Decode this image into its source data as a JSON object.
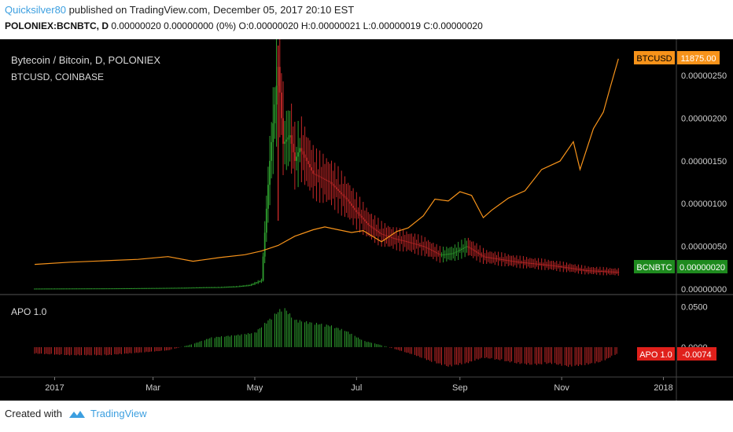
{
  "header": {
    "author": "Quicksilver80",
    "published_text": "published on TradingView.com, December 05, 2017 20:10 EST",
    "symbol": "POLONIEX:BCNBTC, D",
    "ohlc_text": "0.00000020 0.00000000 (0%) O:0.00000020 H:0.00000021 L:0.00000019 C:0.00000020"
  },
  "main_panel": {
    "title": "Bytecoin / Bitcoin, D, POLONIEX",
    "overlay_label": "BTCUSD, COINBASE"
  },
  "indicator_panel": {
    "title": "APO 1.0"
  },
  "footer": {
    "created_with": "Created with",
    "brand": "TradingView"
  },
  "colors": {
    "background": "#000000",
    "btcusd_line": "#f7931a",
    "up": "#2e9e2e",
    "down": "#c62828",
    "badge_green": "#1e8a1e",
    "badge_red": "#e0201b",
    "badge_orange": "#f7931a",
    "brand_blue": "#3c9fe0"
  },
  "chart_data": [
    {
      "type": "candlestick",
      "title": "Bytecoin / Bitcoin, D, POLONIEX",
      "series_name": "BCNBTC",
      "x_ticks": [
        "2017",
        "Mar",
        "May",
        "Jul",
        "Sep",
        "Nov",
        "2018"
      ],
      "y_ticks": [
        "0.00000000",
        "0.00000050",
        "0.00000100",
        "0.00000150",
        "0.00000200",
        "0.00000250"
      ],
      "ylim": [
        0,
        2.85e-06
      ],
      "last_value_label": "BCNBTC",
      "last_value": "0.00000020",
      "x": [
        "2016-12-20",
        "2017-01-05",
        "2017-01-20",
        "2017-02-05",
        "2017-02-20",
        "2017-03-05",
        "2017-03-20",
        "2017-04-01",
        "2017-04-10",
        "2017-04-20",
        "2017-04-28",
        "2017-05-05",
        "2017-05-10",
        "2017-05-15",
        "2017-05-18",
        "2017-05-22",
        "2017-05-25",
        "2017-05-28",
        "2017-06-01",
        "2017-06-05",
        "2017-06-10",
        "2017-06-15",
        "2017-06-20",
        "2017-06-25",
        "2017-07-01",
        "2017-07-08",
        "2017-07-15",
        "2017-07-22",
        "2017-08-01",
        "2017-08-10",
        "2017-08-20",
        "2017-08-28",
        "2017-09-05",
        "2017-09-15",
        "2017-09-25",
        "2017-10-05",
        "2017-10-15",
        "2017-10-25",
        "2017-11-05",
        "2017-11-15",
        "2017-11-25",
        "2017-12-05"
      ],
      "close": [
        5e-09,
        6e-09,
        7e-09,
        8e-09,
        1e-08,
        1.2e-08,
        1.5e-08,
        2e-08,
        2.2e-08,
        3e-08,
        4.5e-08,
        1e-07,
        1.5e-06,
        2.6e-06,
        1.7e-06,
        1.8e-06,
        1.5e-06,
        1.65e-06,
        1.5e-06,
        1.35e-06,
        1.3e-06,
        1.25e-06,
        1.15e-06,
        1.05e-06,
        9e-07,
        7.5e-07,
        6.5e-07,
        6e-07,
        5.5e-07,
        5e-07,
        4e-07,
        4.2e-07,
        5e-07,
        3.8e-07,
        3.5e-07,
        3.2e-07,
        3e-07,
        2.8e-07,
        2.5e-07,
        2.2e-07,
        2.1e-07,
        2e-07
      ]
    },
    {
      "type": "line",
      "series_name": "BTCUSD",
      "overlay_label": "BTCUSD, COINBASE",
      "last_value_label": "BTCUSD",
      "last_value": "11875.00",
      "x": [
        "2016-12-20",
        "2017-01-10",
        "2017-02-01",
        "2017-02-20",
        "2017-03-10",
        "2017-03-25",
        "2017-04-10",
        "2017-04-25",
        "2017-05-05",
        "2017-05-15",
        "2017-05-25",
        "2017-06-05",
        "2017-06-12",
        "2017-06-20",
        "2017-06-28",
        "2017-07-05",
        "2017-07-16",
        "2017-07-25",
        "2017-08-01",
        "2017-08-10",
        "2017-08-17",
        "2017-08-25",
        "2017-09-01",
        "2017-09-08",
        "2017-09-15",
        "2017-09-20",
        "2017-09-30",
        "2017-10-10",
        "2017-10-20",
        "2017-10-31",
        "2017-11-08",
        "2017-11-12",
        "2017-11-20",
        "2017-11-26",
        "2017-11-30",
        "2017-12-05"
      ],
      "values": [
        780,
        900,
        980,
        1050,
        1200,
        950,
        1150,
        1300,
        1500,
        1800,
        2300,
        2650,
        2800,
        2650,
        2500,
        2600,
        2000,
        2550,
        2750,
        3400,
        4300,
        4200,
        4700,
        4500,
        3300,
        3700,
        4350,
        4750,
        5900,
        6350,
        7400,
        5900,
        8100,
        9000,
        10300,
        11875
      ],
      "ylim": [
        0,
        12500
      ]
    },
    {
      "type": "bar",
      "title": "APO 1.0",
      "series_name": "APO 1.0",
      "y_ticks": [
        "0.0000",
        "0.0500"
      ],
      "ylim": [
        -0.032,
        0.06
      ],
      "last_value_label": "APO 1.0",
      "last_value": "-0.0074",
      "x": [
        "2016-12-20",
        "2017-01-10",
        "2017-02-01",
        "2017-02-20",
        "2017-03-10",
        "2017-03-25",
        "2017-04-05",
        "2017-04-20",
        "2017-05-01",
        "2017-05-10",
        "2017-05-18",
        "2017-05-25",
        "2017-06-05",
        "2017-06-15",
        "2017-06-25",
        "2017-07-05",
        "2017-07-15",
        "2017-07-25",
        "2017-08-05",
        "2017-08-15",
        "2017-08-25",
        "2017-09-05",
        "2017-09-15",
        "2017-09-25",
        "2017-10-05",
        "2017-10-15",
        "2017-10-25",
        "2017-11-05",
        "2017-11-15",
        "2017-11-25",
        "2017-12-05"
      ],
      "values": [
        -0.008,
        -0.01,
        -0.01,
        -0.007,
        -0.004,
        0.004,
        0.012,
        0.015,
        0.018,
        0.035,
        0.05,
        0.034,
        0.03,
        0.027,
        0.02,
        0.008,
        0.003,
        -0.003,
        -0.01,
        -0.018,
        -0.024,
        -0.02,
        -0.013,
        -0.016,
        -0.02,
        -0.022,
        -0.02,
        -0.024,
        -0.022,
        -0.018,
        -0.0074
      ]
    }
  ]
}
